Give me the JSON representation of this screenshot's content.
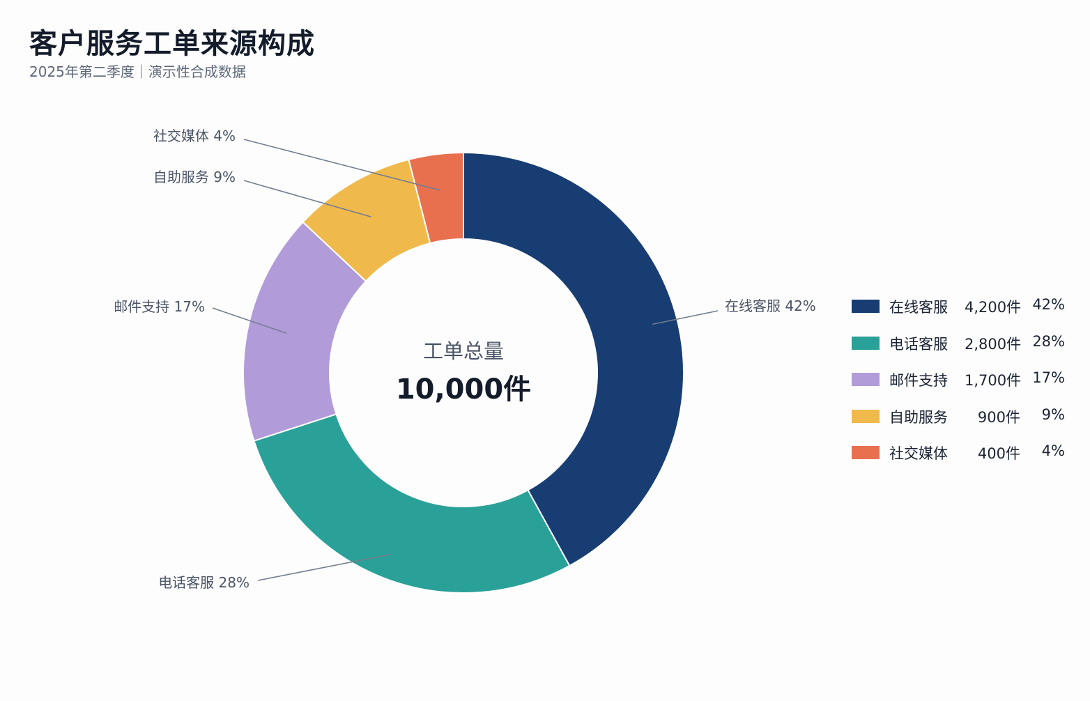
{
  "header": {
    "title": "客户服务工单来源构成",
    "subtitle": "2025年第二季度｜演示性合成数据"
  },
  "center": {
    "label": "工单总量",
    "value": "10,000件"
  },
  "chart_data": {
    "type": "pie",
    "style": "donut",
    "title": "客户服务工单来源构成",
    "subtitle": "2025年第二季度｜演示性合成数据",
    "total": 10000,
    "unit": "件",
    "legend_position": "right",
    "slices": [
      {
        "name": "在线客服",
        "value": 4200,
        "percent": 42,
        "value_label": "4,200件",
        "percent_label": "42%",
        "label": "在线客服 42%",
        "color": "#173d72"
      },
      {
        "name": "电话客服",
        "value": 2800,
        "percent": 28,
        "value_label": "2,800件",
        "percent_label": "28%",
        "label": "电话客服 28%",
        "color": "#2aa198"
      },
      {
        "name": "邮件支持",
        "value": 1700,
        "percent": 17,
        "value_label": "1,700件",
        "percent_label": "17%",
        "label": "邮件支持 17%",
        "color": "#b19cd9"
      },
      {
        "name": "自助服务",
        "value": 900,
        "percent": 9,
        "value_label": "900件",
        "percent_label": "9%",
        "label": "自助服务 9%",
        "color": "#f0b94b"
      },
      {
        "name": "社交媒体",
        "value": 400,
        "percent": 4,
        "value_label": "400件",
        "percent_label": "4%",
        "label": "社交媒体 4%",
        "color": "#e8704f"
      }
    ]
  }
}
